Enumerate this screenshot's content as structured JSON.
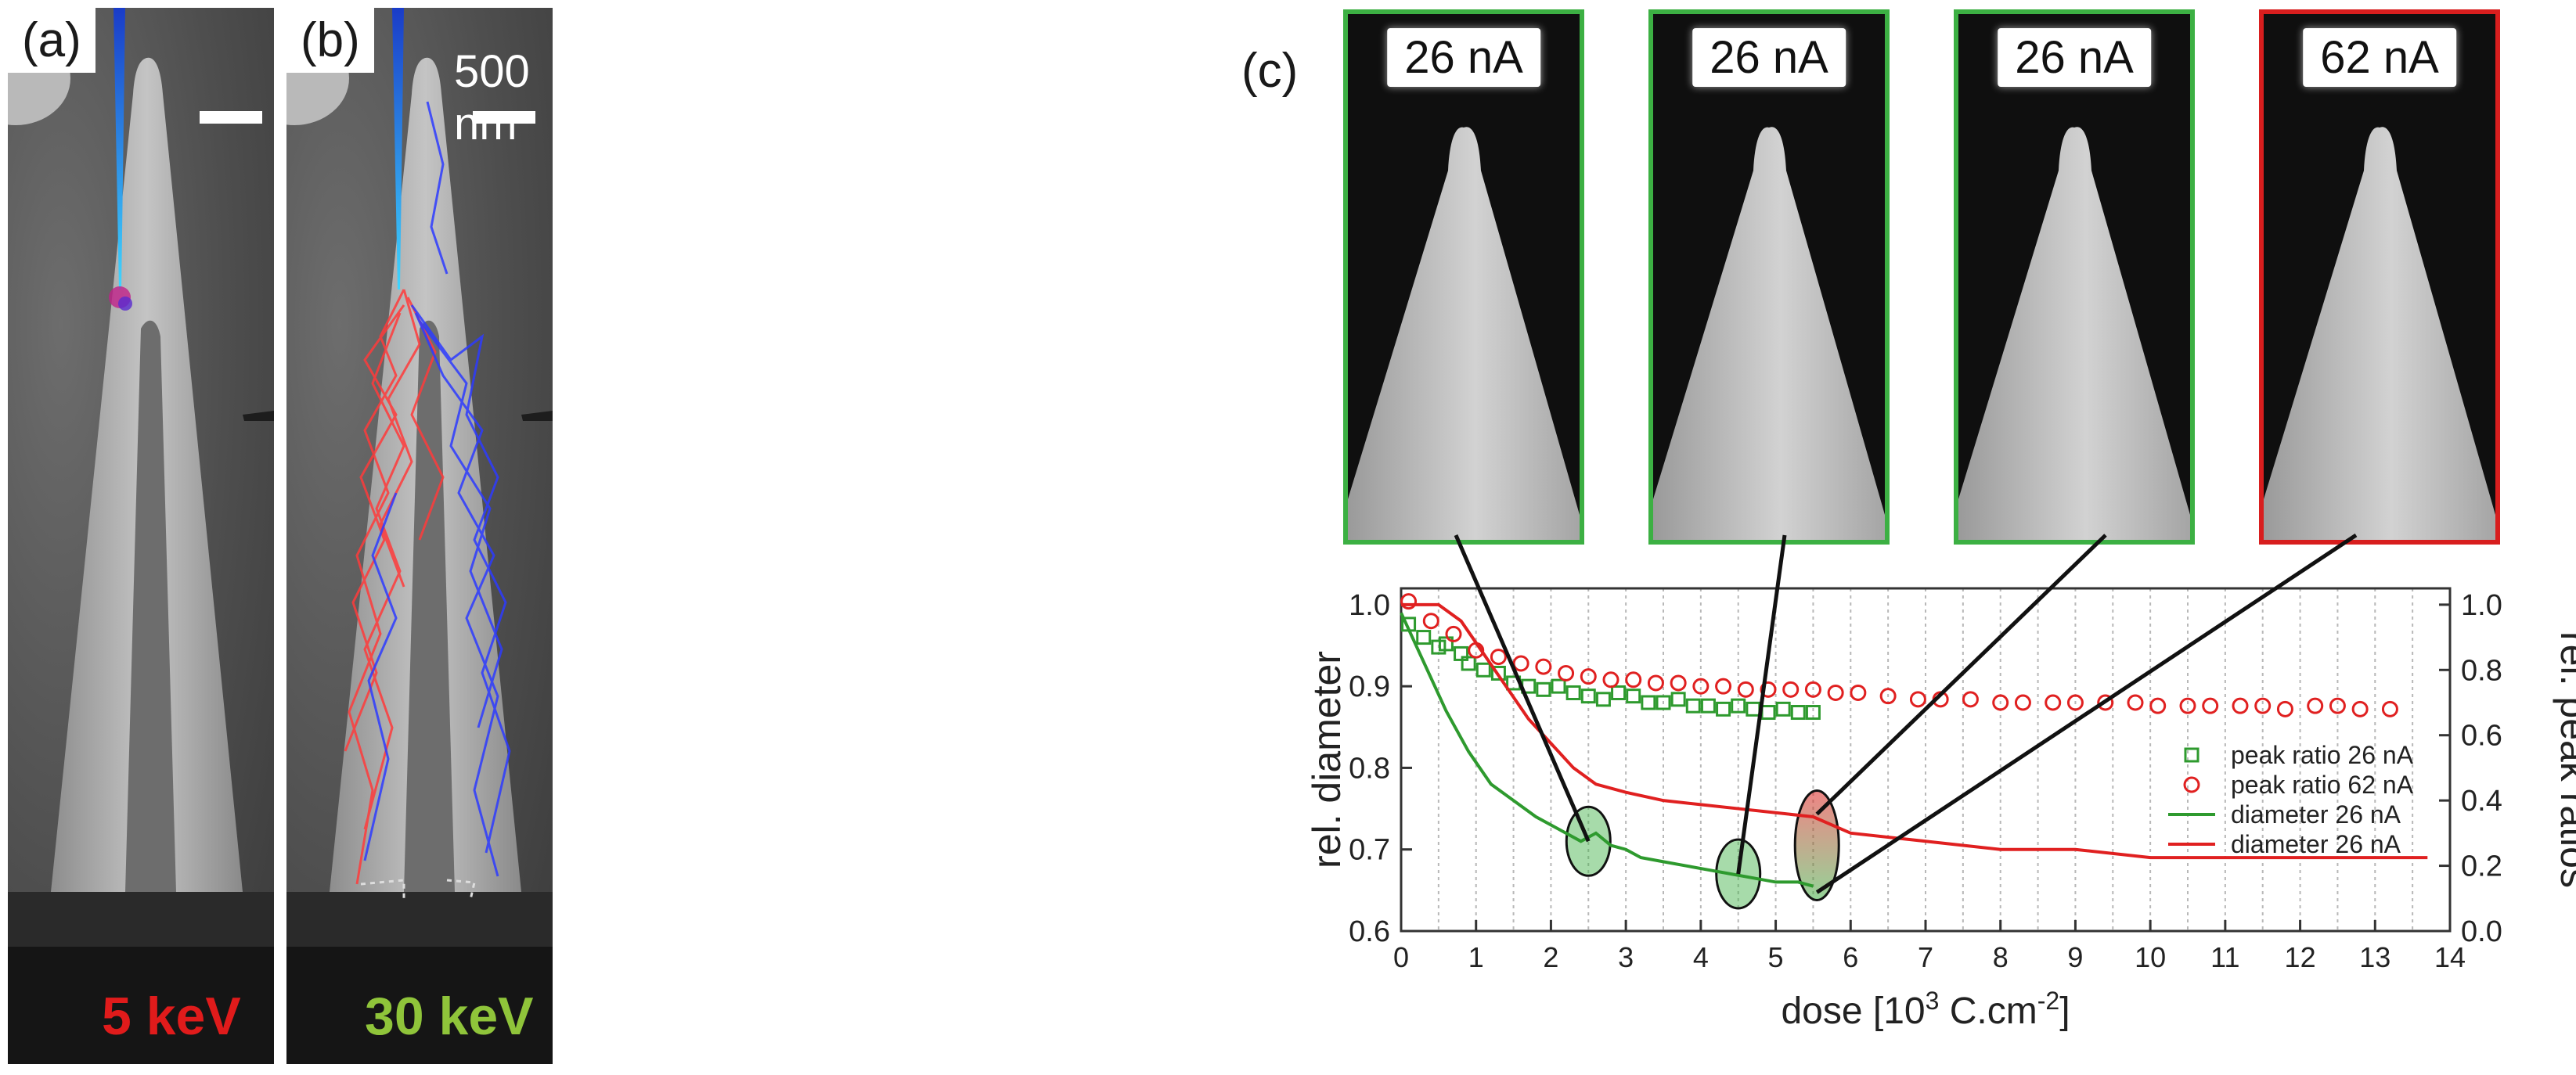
{
  "panel_a": {
    "label": "(a)",
    "energy": "5 keV",
    "energy_color": "#e01b1b"
  },
  "panel_b": {
    "label": "(b)",
    "energy": "30 keV",
    "energy_color": "#8fc43a",
    "scale_label": "500 nm"
  },
  "panel_c": {
    "label": "(c)",
    "thumbnails": [
      {
        "current": "26 nA",
        "frame_color": "#3cb043"
      },
      {
        "current": "26 nA",
        "frame_color": "#3cb043"
      },
      {
        "current": "26 nA",
        "frame_color": "#3cb043"
      },
      {
        "current": "62 nA",
        "frame_color": "#d81e1e"
      }
    ]
  },
  "chart_data": {
    "type": "scatter",
    "xlabel": "dose [10",
    "xlabel_sup": "3",
    "xlabel_mid": " C.cm",
    "xlabel_sup2": "-2",
    "xlabel_end": "]",
    "ylabel": "rel. diameter",
    "y2label": "rel. peak ratios",
    "xlim": [
      0,
      14
    ],
    "ylim": [
      0.6,
      1.02
    ],
    "y2lim": [
      0.0,
      1.05
    ],
    "xticks": [
      "0",
      "1",
      "2",
      "3",
      "4",
      "5",
      "6",
      "7",
      "8",
      "9",
      "10",
      "11",
      "12",
      "13",
      "14"
    ],
    "yticks": [
      "0.6",
      "0.7",
      "0.8",
      "0.9",
      "1.0"
    ],
    "y2ticks": [
      "0.0",
      "0.2",
      "0.4",
      "0.6",
      "0.8",
      "1.0"
    ],
    "legend": [
      "peak ratio 26 nA",
      "peak ratio 62 nA",
      "diameter 26 nA",
      "diameter 26 nA"
    ],
    "colors": {
      "green": "#2e9a2e",
      "red": "#e02020"
    },
    "series": [
      {
        "name": "peak ratio 26 nA",
        "kind": "square",
        "axis": "right",
        "x": [
          0.1,
          0.3,
          0.5,
          0.6,
          0.8,
          0.9,
          1.1,
          1.3,
          1.5,
          1.7,
          1.9,
          2.1,
          2.3,
          2.5,
          2.7,
          2.9,
          3.1,
          3.3,
          3.5,
          3.7,
          3.9,
          4.1,
          4.3,
          4.5,
          4.7,
          4.9,
          5.1,
          5.3,
          5.5
        ],
        "y": [
          0.94,
          0.9,
          0.87,
          0.88,
          0.85,
          0.82,
          0.8,
          0.79,
          0.76,
          0.75,
          0.74,
          0.75,
          0.73,
          0.72,
          0.71,
          0.73,
          0.72,
          0.7,
          0.7,
          0.71,
          0.69,
          0.69,
          0.68,
          0.69,
          0.68,
          0.67,
          0.68,
          0.67,
          0.67
        ]
      },
      {
        "name": "peak ratio 62 nA",
        "kind": "circle",
        "axis": "right",
        "x": [
          0.1,
          0.4,
          0.7,
          1.0,
          1.3,
          1.6,
          1.9,
          2.2,
          2.5,
          2.8,
          3.1,
          3.4,
          3.7,
          4.0,
          4.3,
          4.6,
          4.9,
          5.2,
          5.5,
          5.8,
          6.1,
          6.5,
          6.9,
          7.2,
          7.6,
          8.0,
          8.3,
          8.7,
          9.0,
          9.4,
          9.8,
          10.1,
          10.5,
          10.8,
          11.2,
          11.5,
          11.8,
          12.2,
          12.5,
          12.8,
          13.2
        ],
        "y": [
          1.01,
          0.95,
          0.91,
          0.86,
          0.84,
          0.82,
          0.81,
          0.79,
          0.78,
          0.77,
          0.77,
          0.76,
          0.76,
          0.75,
          0.75,
          0.74,
          0.74,
          0.74,
          0.74,
          0.73,
          0.73,
          0.72,
          0.71,
          0.71,
          0.71,
          0.7,
          0.7,
          0.7,
          0.7,
          0.7,
          0.7,
          0.69,
          0.69,
          0.69,
          0.69,
          0.69,
          0.68,
          0.69,
          0.69,
          0.68,
          0.68
        ]
      },
      {
        "name": "diameter 26 nA (green)",
        "kind": "line",
        "color": "green",
        "axis": "left",
        "x": [
          0,
          0.3,
          0.6,
          0.9,
          1.2,
          1.5,
          1.8,
          2.1,
          2.4,
          2.6,
          2.8,
          3.0,
          3.2,
          3.5,
          3.8,
          4.1,
          4.4,
          4.7,
          5.0,
          5.3,
          5.5
        ],
        "y": [
          0.99,
          0.93,
          0.87,
          0.82,
          0.78,
          0.76,
          0.74,
          0.725,
          0.71,
          0.72,
          0.705,
          0.7,
          0.69,
          0.685,
          0.68,
          0.675,
          0.67,
          0.665,
          0.66,
          0.66,
          0.655
        ]
      },
      {
        "name": "diameter 26 nA (red)",
        "kind": "line",
        "color": "red",
        "axis": "left",
        "x": [
          0,
          0.5,
          0.8,
          1.1,
          1.4,
          1.7,
          2.0,
          2.3,
          2.6,
          3.0,
          3.5,
          4.0,
          4.5,
          5.0,
          5.5,
          6.0,
          7.0,
          8.0,
          9.0,
          10.0,
          11.0,
          12.0,
          13.0,
          13.7
        ],
        "y": [
          1.0,
          1.0,
          0.98,
          0.94,
          0.9,
          0.86,
          0.83,
          0.8,
          0.78,
          0.77,
          0.76,
          0.755,
          0.75,
          0.745,
          0.74,
          0.72,
          0.71,
          0.7,
          0.7,
          0.69,
          0.69,
          0.69,
          0.69,
          0.69
        ]
      }
    ],
    "highlight_ellipses": [
      {
        "x": 2.5,
        "y": 0.71,
        "color": "green"
      },
      {
        "x": 4.5,
        "y": 0.67,
        "color": "green"
      },
      {
        "x": 5.55,
        "y": 0.705,
        "color": "red-green"
      }
    ]
  }
}
